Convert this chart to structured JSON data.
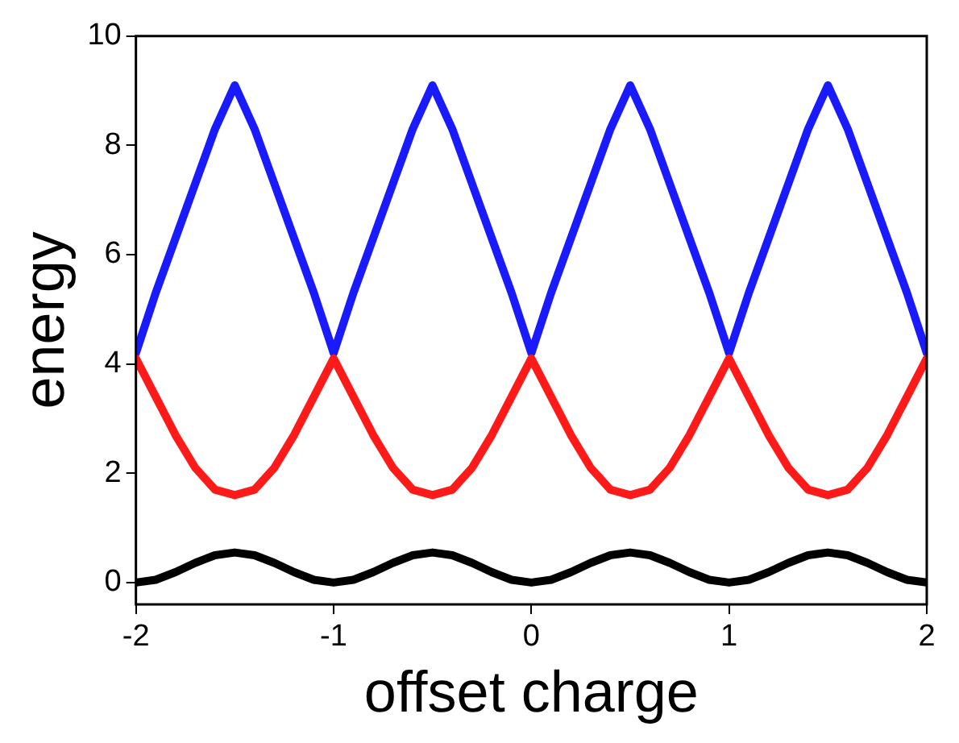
{
  "chart_data": {
    "type": "line",
    "xlabel": "offset charge",
    "ylabel": "energy",
    "x": [
      -2,
      -1.9,
      -1.8,
      -1.7,
      -1.6,
      -1.5,
      -1.4,
      -1.3,
      -1.2,
      -1.1,
      -1,
      -0.9,
      -0.8,
      -0.7,
      -0.6,
      -0.5,
      -0.4,
      -0.3,
      -0.2,
      -0.1,
      0,
      0.1,
      0.2,
      0.3,
      0.4,
      0.5,
      0.6,
      0.7,
      0.8,
      0.9,
      1,
      1.1,
      1.2,
      1.3,
      1.4,
      1.5,
      1.6,
      1.7,
      1.8,
      1.9,
      2
    ],
    "series": [
      {
        "color": "#000000",
        "values": [
          0,
          0.05,
          0.19,
          0.36,
          0.5,
          0.55,
          0.5,
          0.36,
          0.19,
          0.05,
          0,
          0.05,
          0.19,
          0.36,
          0.5,
          0.55,
          0.5,
          0.36,
          0.19,
          0.05,
          0,
          0.05,
          0.19,
          0.36,
          0.5,
          0.55,
          0.5,
          0.36,
          0.19,
          0.05,
          0,
          0.05,
          0.19,
          0.36,
          0.5,
          0.55,
          0.5,
          0.36,
          0.19,
          0.05,
          0
        ]
      },
      {
        "color": "#ff1a1a",
        "values": [
          4.1,
          3.4,
          2.7,
          2.1,
          1.7,
          1.6,
          1.7,
          2.1,
          2.7,
          3.4,
          4.1,
          3.4,
          2.7,
          2.1,
          1.7,
          1.6,
          1.7,
          2.1,
          2.7,
          3.4,
          4.1,
          3.4,
          2.7,
          2.1,
          1.7,
          1.6,
          1.7,
          2.1,
          2.7,
          3.4,
          4.1,
          3.4,
          2.7,
          2.1,
          1.7,
          1.6,
          1.7,
          2.1,
          2.7,
          3.4,
          4.1
        ]
      },
      {
        "color": "#1a1aff",
        "values": [
          4.2,
          5.3,
          6.3,
          7.3,
          8.3,
          9.1,
          8.3,
          7.3,
          6.3,
          5.3,
          4.2,
          5.3,
          6.3,
          7.3,
          8.3,
          9.1,
          8.3,
          7.3,
          6.3,
          5.3,
          4.2,
          5.3,
          6.3,
          7.3,
          8.3,
          9.1,
          8.3,
          7.3,
          6.3,
          5.3,
          4.2,
          5.3,
          6.3,
          7.3,
          8.3,
          9.1,
          8.3,
          7.3,
          6.3,
          5.3,
          4.2
        ]
      }
    ],
    "xlim": [
      -2,
      2
    ],
    "xticks": [
      -2,
      -1,
      0,
      1,
      2
    ],
    "ylim": [
      -0.4,
      10
    ],
    "yticks": [
      0,
      2,
      4,
      6,
      8,
      10
    ],
    "grid": false,
    "legend": false,
    "marker": "none",
    "line_style": "solid"
  }
}
